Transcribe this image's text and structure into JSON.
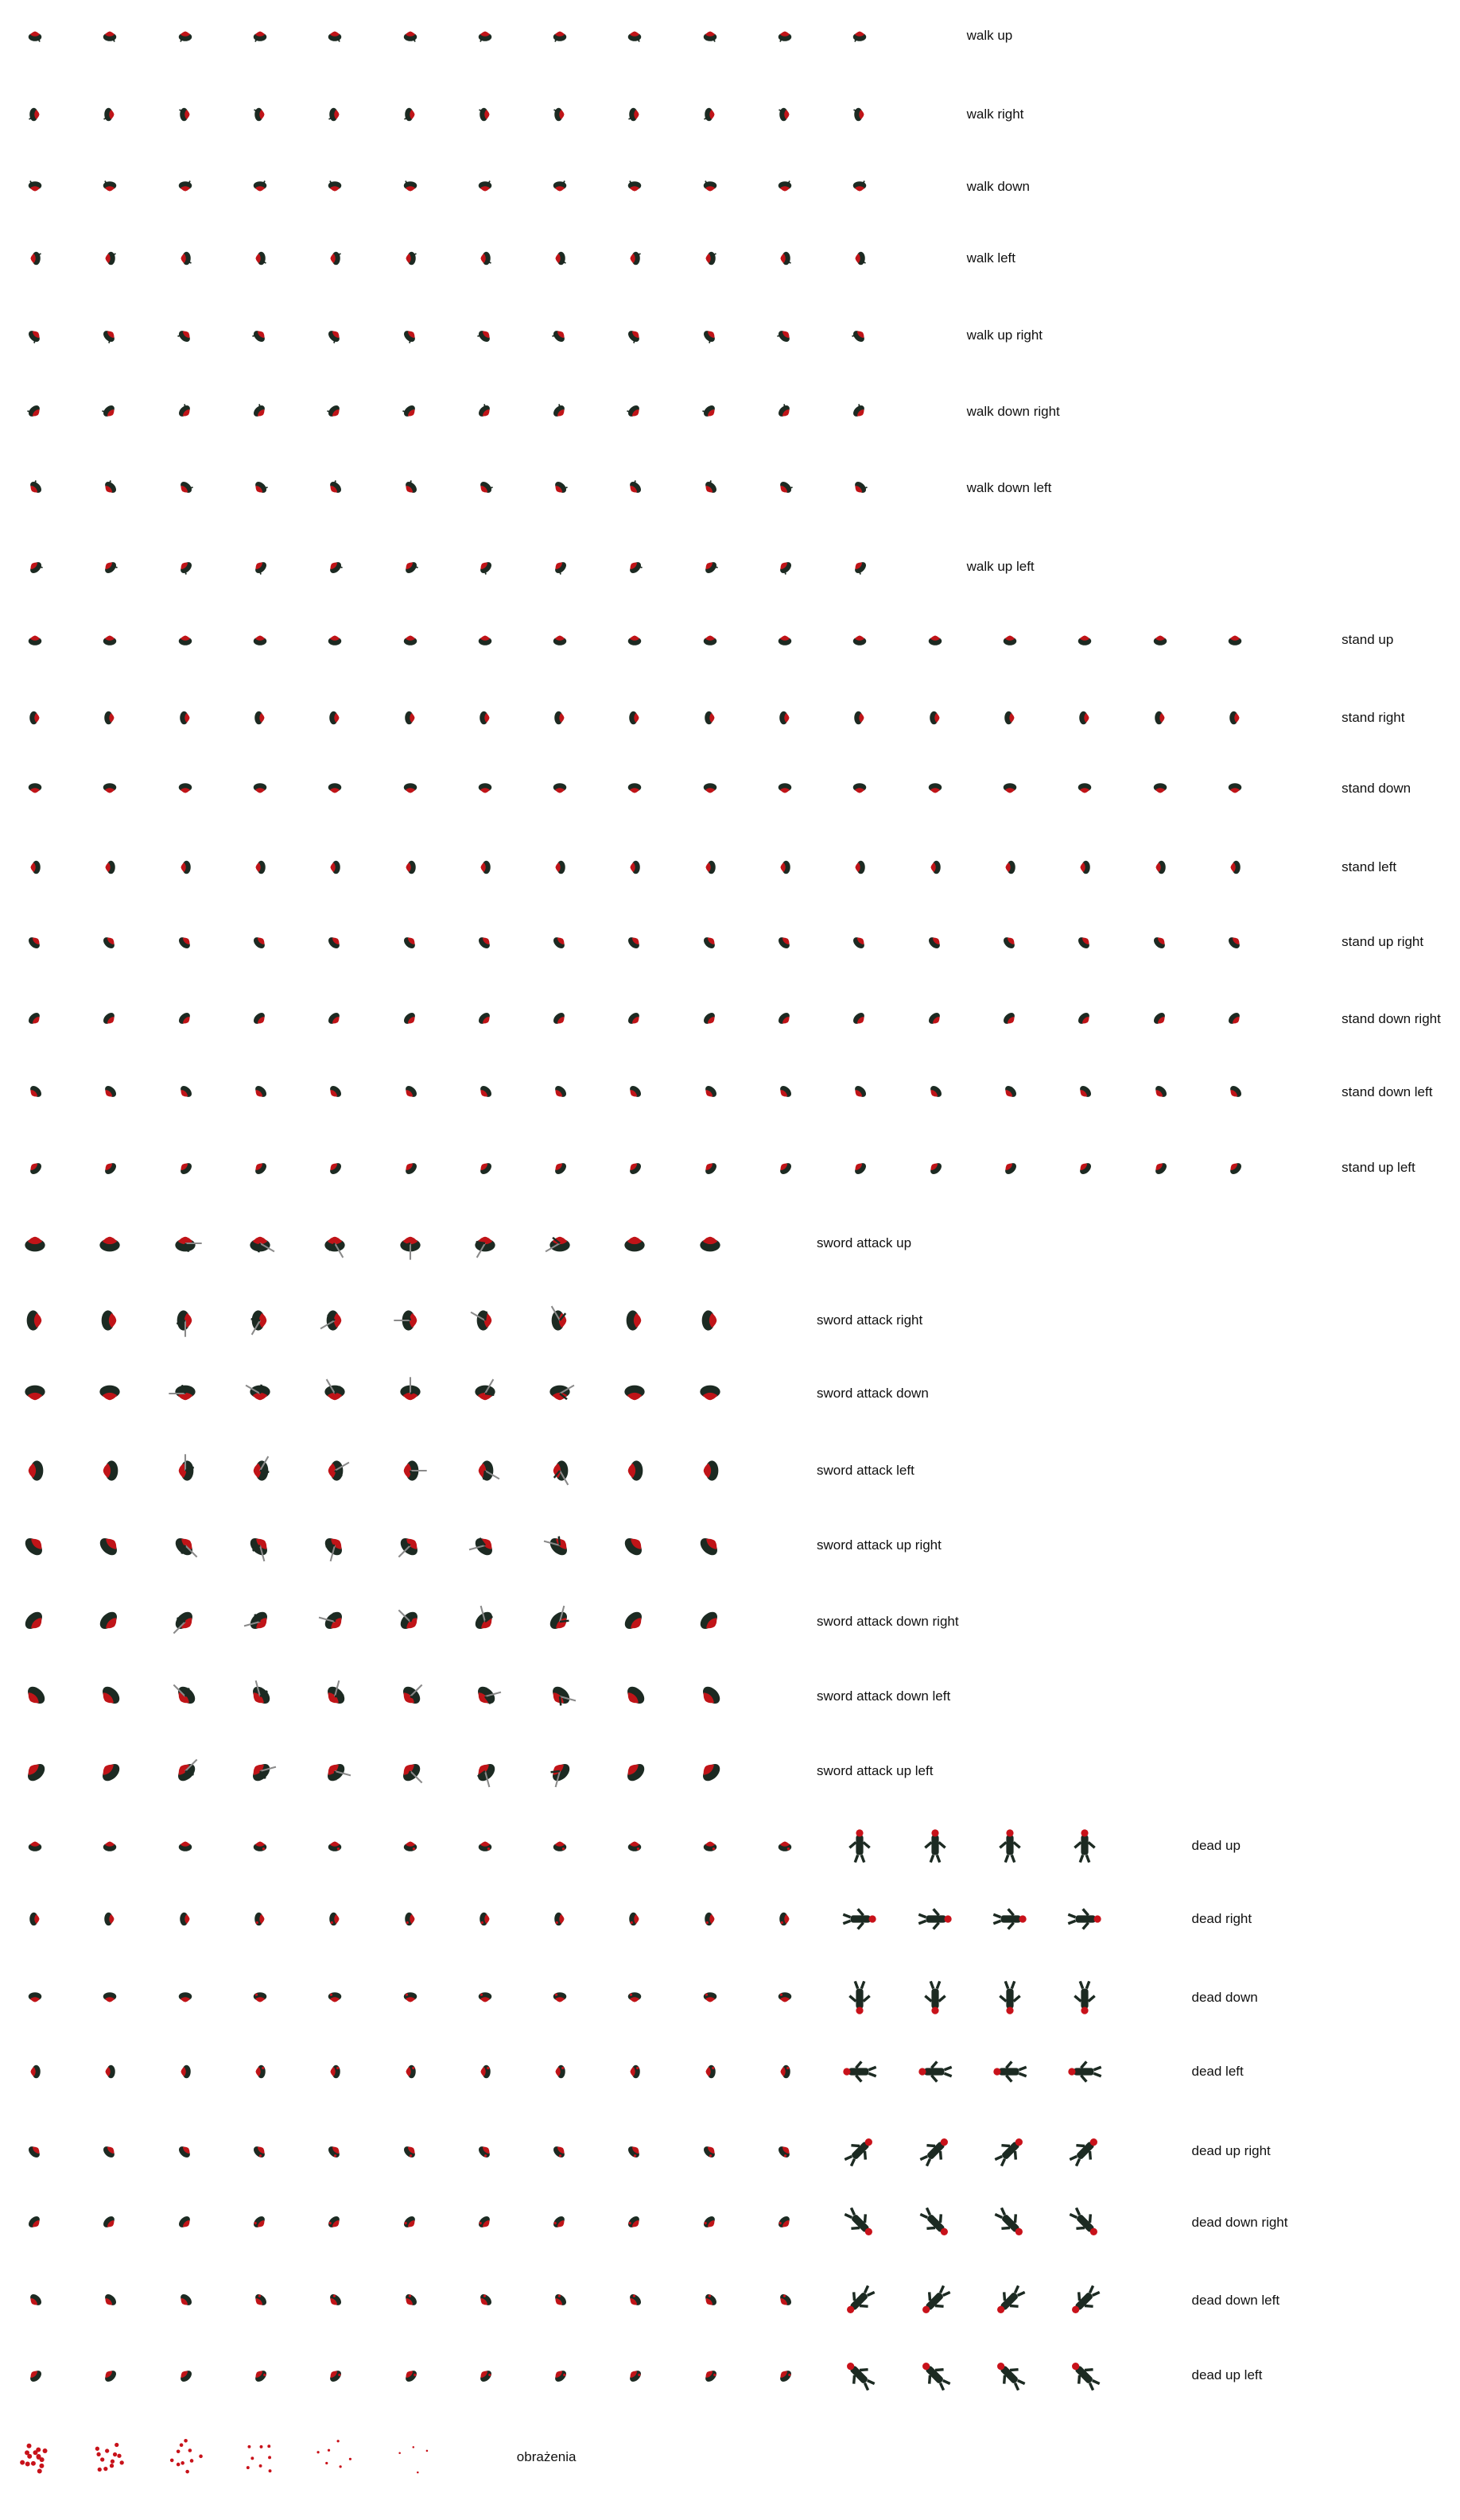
{
  "sheet": {
    "rows": [
      {
        "label": "walk up",
        "frames": 12,
        "kind": "walk",
        "dir": 0
      },
      {
        "label": "walk right",
        "frames": 12,
        "kind": "walk",
        "dir": 90
      },
      {
        "label": "walk down",
        "frames": 12,
        "kind": "walk",
        "dir": 180
      },
      {
        "label": "walk left",
        "frames": 12,
        "kind": "walk",
        "dir": 270
      },
      {
        "label": "walk up right",
        "frames": 12,
        "kind": "walk",
        "dir": 45
      },
      {
        "label": "walk down right",
        "frames": 12,
        "kind": "walk",
        "dir": 135
      },
      {
        "label": "walk down left",
        "frames": 12,
        "kind": "walk",
        "dir": 225
      },
      {
        "label": "walk up left",
        "frames": 12,
        "kind": "walk",
        "dir": 315
      },
      {
        "label": "stand up",
        "frames": 17,
        "kind": "stand",
        "dir": 0
      },
      {
        "label": "stand right",
        "frames": 17,
        "kind": "stand",
        "dir": 90
      },
      {
        "label": "stand down",
        "frames": 17,
        "kind": "stand",
        "dir": 180
      },
      {
        "label": "stand left",
        "frames": 17,
        "kind": "stand",
        "dir": 270
      },
      {
        "label": "stand up right",
        "frames": 17,
        "kind": "stand",
        "dir": 45
      },
      {
        "label": "stand down right",
        "frames": 17,
        "kind": "stand",
        "dir": 135
      },
      {
        "label": "stand down left",
        "frames": 17,
        "kind": "stand",
        "dir": 225
      },
      {
        "label": "stand up left",
        "frames": 17,
        "kind": "stand",
        "dir": 315
      },
      {
        "label": "sword attack up",
        "frames": 10,
        "kind": "attack",
        "dir": 0
      },
      {
        "label": "sword attack right",
        "frames": 10,
        "kind": "attack",
        "dir": 90
      },
      {
        "label": "sword attack down",
        "frames": 10,
        "kind": "attack",
        "dir": 180
      },
      {
        "label": "sword attack left",
        "frames": 10,
        "kind": "attack",
        "dir": 270
      },
      {
        "label": "sword attack up right",
        "frames": 10,
        "kind": "attack",
        "dir": 45
      },
      {
        "label": "sword attack down right",
        "frames": 10,
        "kind": "attack",
        "dir": 135
      },
      {
        "label": "sword attack down left",
        "frames": 10,
        "kind": "attack",
        "dir": 225
      },
      {
        "label": "sword attack up left",
        "frames": 10,
        "kind": "attack",
        "dir": 315
      },
      {
        "label": "dead up",
        "frames": 15,
        "kind": "dead",
        "dir": 0
      },
      {
        "label": "dead right",
        "frames": 15,
        "kind": "dead",
        "dir": 90
      },
      {
        "label": "dead down",
        "frames": 15,
        "kind": "dead",
        "dir": 180
      },
      {
        "label": "dead left",
        "frames": 15,
        "kind": "dead",
        "dir": 270
      },
      {
        "label": "dead up right",
        "frames": 15,
        "kind": "dead",
        "dir": 45
      },
      {
        "label": "dead down right",
        "frames": 15,
        "kind": "dead",
        "dir": 135
      },
      {
        "label": "dead down left",
        "frames": 15,
        "kind": "dead",
        "dir": 225
      },
      {
        "label": "dead up left",
        "frames": 15,
        "kind": "dead",
        "dir": 315
      },
      {
        "label": "obrażenia",
        "frames": 6,
        "kind": "damage",
        "dir": 0
      }
    ]
  },
  "colors": {
    "body": "#1c2a22",
    "cloak": "#c01418",
    "skin": "#e0b090",
    "blood": "#c8121a",
    "sword": "#8a8a8a",
    "label": "#111111"
  }
}
